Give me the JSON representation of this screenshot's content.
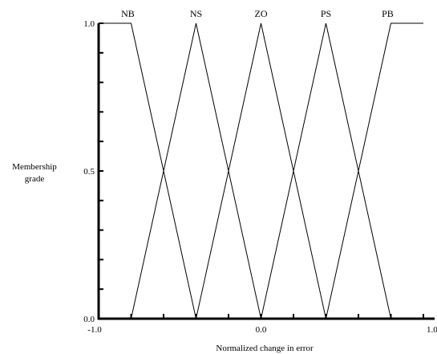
{
  "chart_data": {
    "type": "line",
    "title": "",
    "xlabel": "Normalized change in error",
    "ylabel_lines": [
      "Membership",
      "grade"
    ],
    "xlim": [
      -1.0,
      1.0
    ],
    "ylim": [
      0.0,
      1.0
    ],
    "x_ticks": [
      -1.0,
      0.0,
      1.0
    ],
    "x_tick_labels": [
      "-1.0",
      "0.0",
      "1.0"
    ],
    "x_minor_ticks": [
      -1.0,
      -0.8,
      -0.6,
      -0.4,
      -0.2,
      0.0,
      0.2,
      0.4,
      0.6,
      0.8,
      1.0
    ],
    "y_ticks": [
      0.0,
      0.5,
      1.0
    ],
    "y_tick_labels": [
      "0.0",
      "0.5",
      "1.0"
    ],
    "y_minor_ticks": [
      0.0,
      0.1,
      0.2,
      0.3,
      0.4,
      0.5,
      0.6,
      0.7,
      0.8,
      0.9,
      1.0
    ],
    "grid": false,
    "legend": "none",
    "series": [
      {
        "name": "NB",
        "x": [
          -1.0,
          -0.8,
          -0.4
        ],
        "y": [
          1.0,
          1.0,
          0.0
        ]
      },
      {
        "name": "NS",
        "x": [
          -0.8,
          -0.4,
          0.0
        ],
        "y": [
          0.0,
          1.0,
          0.0
        ]
      },
      {
        "name": "ZO",
        "x": [
          -0.4,
          0.0,
          0.4
        ],
        "y": [
          0.0,
          1.0,
          0.0
        ]
      },
      {
        "name": "PS",
        "x": [
          0.0,
          0.4,
          0.8
        ],
        "y": [
          0.0,
          1.0,
          0.0
        ]
      },
      {
        "name": "PB",
        "x": [
          0.4,
          0.8,
          1.0
        ],
        "y": [
          0.0,
          1.0,
          1.0
        ]
      }
    ],
    "set_labels": [
      {
        "text": "NB",
        "x": -0.82
      },
      {
        "text": "NS",
        "x": -0.4
      },
      {
        "text": "ZO",
        "x": 0.0
      },
      {
        "text": "PS",
        "x": 0.4
      },
      {
        "text": "PB",
        "x": 0.78
      }
    ],
    "line_color": "#000000"
  }
}
